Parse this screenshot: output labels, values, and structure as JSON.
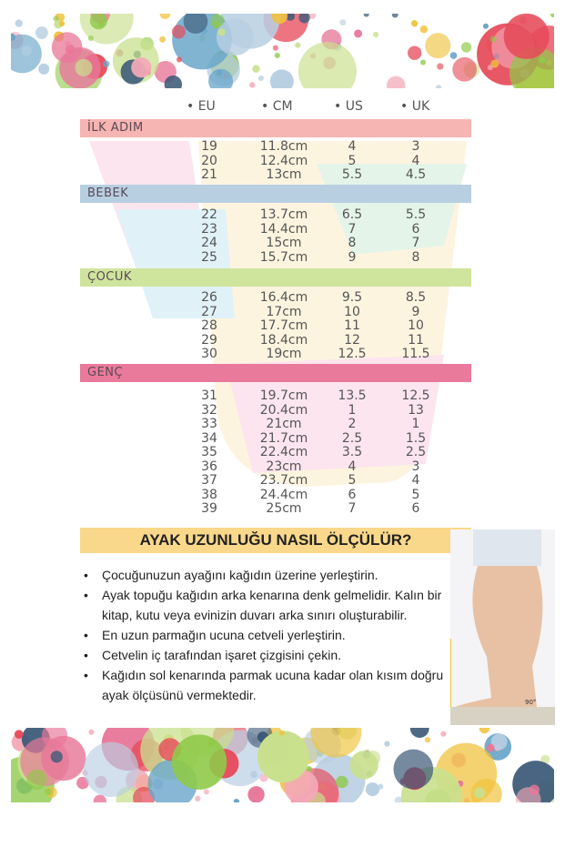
{
  "columns": [
    "• EU",
    "• CM",
    "• US",
    "• UK"
  ],
  "groups": [
    {
      "name": "İLK ADIM",
      "color": "#f6b4b2",
      "rows": [
        [
          "19",
          "11.8cm",
          "4",
          "3"
        ],
        [
          "20",
          "12.4cm",
          "5",
          "4"
        ],
        [
          "21",
          "13cm",
          "5.5",
          "4.5"
        ]
      ]
    },
    {
      "name": "BEBEK",
      "color": "#b8cfe2",
      "rows": [
        [
          "22",
          "13.7cm",
          "6.5",
          "5.5"
        ],
        [
          "23",
          "14.4cm",
          "7",
          "6"
        ],
        [
          "24",
          "15cm",
          "8",
          "7"
        ],
        [
          "25",
          "15.7cm",
          "9",
          "8"
        ]
      ]
    },
    {
      "name": "ÇOCUK",
      "color": "#cfe49c",
      "rows": [
        [
          "26",
          "16.4cm",
          "9.5",
          "8.5"
        ],
        [
          "27",
          "17cm",
          "10",
          "9"
        ],
        [
          "28",
          "17.7cm",
          "11",
          "10"
        ],
        [
          "29",
          "18.4cm",
          "12",
          "11"
        ],
        [
          "30",
          "19cm",
          "12.5",
          "11.5"
        ]
      ]
    },
    {
      "name": "GENÇ",
      "color": "#e97a9b",
      "rows": [
        [
          "31",
          "19.7cm",
          "13.5",
          "12.5"
        ],
        [
          "32",
          "20.4cm",
          "1",
          "13"
        ],
        [
          "33",
          "21cm",
          "2",
          "1"
        ],
        [
          "34",
          "21.7cm",
          "2.5",
          "1.5"
        ],
        [
          "35",
          "22.4cm",
          "3.5",
          "2.5"
        ],
        [
          "36",
          "23cm",
          "4",
          "3"
        ],
        [
          "37",
          "23.7cm",
          "5",
          "4"
        ],
        [
          "38",
          "24.4cm",
          "6",
          "5"
        ],
        [
          "39",
          "25cm",
          "7",
          "6"
        ]
      ]
    }
  ],
  "howto": {
    "title": "AYAK UZUNLUĞU NASIL ÖLÇÜLÜR?",
    "bullets": [
      "Çocuğunuzun ayağını kağıdın üzerine yerleştirin.",
      "Ayak topuğu kağıdın arka kenarına denk gelmelidir. Kalın bir kitap, kutu veya evinizin duvarı arka sınırı oluşturabilir.",
      "En uzun parmağın ucuna cetveli yerleştirin.",
      "Cetvelin iç tarafından işaret çizgisini çekin.",
      "Kağıdın sol kenarında parmak ucuna kadar olan kısım doğru ayak ölçüsünü vermektedir."
    ],
    "photo_label": "90°"
  },
  "dot_colors": [
    "#e8789a",
    "#3d5a78",
    "#8fc94a",
    "#f3a9b8",
    "#b8cfe2",
    "#e64b5a",
    "#f0c23c",
    "#6aa6c9",
    "#c9e08e"
  ]
}
